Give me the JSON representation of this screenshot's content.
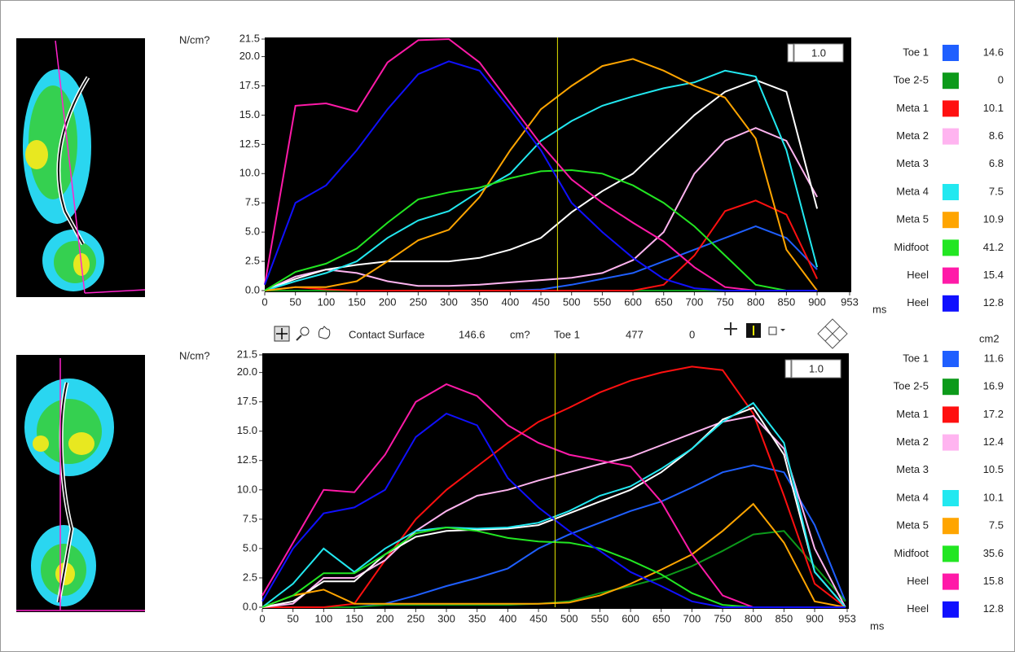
{
  "chart_data": [
    {
      "type": "line",
      "y_label": "N/cm?",
      "x_label": "ms",
      "scale_box": "1.0",
      "xlim": [
        0,
        953
      ],
      "ylim": [
        0,
        21.5
      ],
      "xticks": [
        0,
        50,
        100,
        150,
        200,
        250,
        300,
        350,
        400,
        450,
        500,
        550,
        600,
        650,
        700,
        750,
        800,
        850,
        900,
        953
      ],
      "yticks": [
        {
          "value": 0,
          "label": "0.0"
        },
        2.5,
        {
          "value": 5,
          "label": "5.0"
        },
        7.5,
        {
          "value": 10,
          "label": "10.0"
        },
        12.5,
        {
          "value": 15,
          "label": "15.0"
        },
        17.5,
        {
          "value": 20,
          "label": "20.0"
        },
        21.5
      ],
      "x": [
        0,
        50,
        100,
        150,
        200,
        250,
        300,
        350,
        400,
        450,
        500,
        550,
        600,
        650,
        700,
        750,
        800,
        850,
        900,
        950
      ],
      "series": [
        {
          "name": "Toe 1",
          "color": "#1f5fff",
          "reading": 14.6,
          "values": [
            0,
            0,
            0,
            0,
            0,
            0,
            0,
            0,
            0,
            0.1,
            0.5,
            1,
            1.5,
            2.5,
            3.5,
            4.5,
            5.5,
            4.5,
            1.8,
            null
          ]
        },
        {
          "name": "Toe 2-5",
          "color": "#0c9a1a",
          "reading": 0.0,
          "values": [
            0,
            0,
            0,
            0,
            0,
            0,
            0,
            0,
            0,
            0,
            0,
            0,
            0,
            0,
            0,
            0,
            0,
            0,
            0,
            null
          ]
        },
        {
          "name": "Meta 1",
          "color": "#ff1010",
          "reading": 10.1,
          "values": [
            0,
            0.3,
            0.1,
            0,
            0,
            0,
            0,
            0,
            0,
            0,
            0,
            0,
            0,
            0.5,
            3,
            6.8,
            7.7,
            6.5,
            1,
            null
          ]
        },
        {
          "name": "Meta 2",
          "color": "#ffb4f0",
          "reading": 8.6,
          "values": [
            0,
            1.2,
            1.8,
            1.5,
            0.8,
            0.4,
            0.4,
            0.5,
            0.7,
            0.9,
            1.1,
            1.5,
            2.6,
            5,
            10,
            12.8,
            13.9,
            12.8,
            8,
            null
          ]
        },
        {
          "name": "Meta 3",
          "color": "#ffffff",
          "reading": 6.8,
          "values": [
            0,
            1,
            1.8,
            2.2,
            2.5,
            2.5,
            2.5,
            2.8,
            3.5,
            4.5,
            6.7,
            8.5,
            10,
            12.5,
            15,
            17,
            18,
            17,
            7,
            null
          ]
        },
        {
          "name": "Meta 4",
          "color": "#22e8f0",
          "reading": 7.5,
          "values": [
            0,
            0.8,
            1.5,
            2.5,
            4.5,
            6,
            6.8,
            8.5,
            10,
            12.8,
            14.5,
            15.8,
            16.6,
            17.3,
            17.8,
            18.8,
            18.3,
            12,
            2,
            null
          ]
        },
        {
          "name": "Meta 5",
          "color": "#ffa500",
          "reading": 10.9,
          "values": [
            0,
            0.3,
            0.3,
            0.8,
            2.5,
            4.3,
            5.2,
            8,
            12,
            15.5,
            17.5,
            19.2,
            19.8,
            18.8,
            17.5,
            16.5,
            13,
            3.5,
            0,
            null
          ]
        },
        {
          "name": "Midfoot",
          "color": "#22e622",
          "reading": 41.2,
          "values": [
            0,
            1.6,
            2.3,
            3.6,
            5.8,
            7.8,
            8.4,
            8.8,
            9.6,
            10.2,
            10.3,
            10,
            9,
            7.5,
            5.5,
            3,
            0.5,
            0,
            0,
            null
          ]
        },
        {
          "name": "Heel",
          "color": "#ff1aa8",
          "reading": 15.4,
          "values": [
            0.5,
            15.8,
            16,
            15.3,
            19.5,
            21.4,
            21.5,
            19.5,
            16,
            12.5,
            9.5,
            7.5,
            5.8,
            4.2,
            2,
            0.3,
            0,
            0,
            0,
            null
          ]
        },
        {
          "name": "Heel",
          "color": "#1010ff",
          "reading": 12.8,
          "values": [
            0.5,
            7.5,
            9,
            12,
            15.5,
            18.5,
            19.6,
            18.8,
            15.5,
            12,
            7.5,
            5,
            2.8,
            1,
            0.2,
            0,
            0,
            0,
            0,
            null
          ]
        }
      ]
    },
    {
      "type": "line",
      "y_label": "N/cm?",
      "x_label": "ms",
      "scale_box": "1.0",
      "legend_unit": "cm2",
      "xlim": [
        0,
        953
      ],
      "ylim": [
        0,
        21.5
      ],
      "xticks": [
        0,
        50,
        100,
        150,
        200,
        250,
        300,
        350,
        400,
        450,
        500,
        550,
        600,
        650,
        700,
        750,
        800,
        850,
        900,
        953
      ],
      "yticks": [
        {
          "value": 0,
          "label": "0.0"
        },
        2.5,
        {
          "value": 5,
          "label": "5.0"
        },
        7.5,
        {
          "value": 10,
          "label": "10.0"
        },
        12.5,
        {
          "value": 15,
          "label": "15.0"
        },
        17.5,
        {
          "value": 20,
          "label": "20.0"
        },
        21.5
      ],
      "x": [
        0,
        50,
        100,
        150,
        200,
        250,
        300,
        350,
        400,
        450,
        500,
        550,
        600,
        650,
        700,
        750,
        800,
        850,
        900,
        950
      ],
      "series": [
        {
          "name": "Toe 1",
          "color": "#1f5fff",
          "reading": 11.6,
          "values": [
            0,
            0,
            0,
            0,
            0.3,
            1,
            1.8,
            2.5,
            3.3,
            5,
            6.2,
            7.2,
            8.2,
            9,
            10.2,
            11.5,
            12.1,
            11.5,
            7,
            0.5
          ]
        },
        {
          "name": "Toe 2-5",
          "color": "#0c9a1a",
          "reading": 16.9,
          "values": [
            0,
            0,
            0,
            0,
            0.2,
            0.2,
            0.2,
            0.2,
            0.2,
            0.3,
            0.5,
            1.2,
            1.8,
            2.5,
            3.5,
            4.8,
            6.2,
            6.5,
            3.5,
            0.5
          ]
        },
        {
          "name": "Meta 1",
          "color": "#ff1010",
          "reading": 17.2,
          "values": [
            0,
            0,
            0,
            0.3,
            4,
            7.5,
            10,
            12,
            14,
            15.8,
            17,
            18.3,
            19.3,
            20,
            20.5,
            20.2,
            16.5,
            9.5,
            2,
            0
          ]
        },
        {
          "name": "Meta 2",
          "color": "#ffb4f0",
          "reading": 12.4,
          "values": [
            0,
            0.3,
            2.5,
            2.5,
            4,
            6.5,
            8.2,
            9.5,
            10,
            10.8,
            11.5,
            12.2,
            12.8,
            13.8,
            14.8,
            15.8,
            16.3,
            13.5,
            5,
            0
          ]
        },
        {
          "name": "Meta 3",
          "color": "#ffffff",
          "reading": 10.5,
          "values": [
            0,
            0.5,
            2.2,
            2.2,
            4.5,
            6,
            6.5,
            6.6,
            6.7,
            7,
            8,
            9,
            10,
            11.5,
            13.5,
            16,
            17,
            13,
            3,
            0
          ]
        },
        {
          "name": "Meta 4",
          "color": "#22e8f0",
          "reading": 10.1,
          "values": [
            0,
            2,
            5,
            3,
            5,
            6.5,
            6.8,
            6.7,
            6.8,
            7.2,
            8.2,
            9.5,
            10.3,
            11.8,
            13.5,
            15.8,
            17.4,
            14,
            3,
            0
          ]
        },
        {
          "name": "Meta 5",
          "color": "#ffa500",
          "reading": 7.5,
          "values": [
            0,
            1,
            1.5,
            0.3,
            0.3,
            0.3,
            0.3,
            0.3,
            0.3,
            0.3,
            0.4,
            1,
            2,
            3.2,
            4.5,
            6.5,
            8.8,
            5.5,
            0.5,
            0
          ]
        },
        {
          "name": "Midfoot",
          "color": "#22e622",
          "reading": 35.6,
          "values": [
            0,
            1,
            2.9,
            2.9,
            4.5,
            6.3,
            6.8,
            6.5,
            5.9,
            5.6,
            5.5,
            5,
            4,
            2.8,
            1.2,
            0.2,
            0,
            0,
            0,
            0
          ]
        },
        {
          "name": "Heel",
          "color": "#ff1aa8",
          "reading": 15.8,
          "values": [
            1,
            5.5,
            10,
            9.8,
            13,
            17.5,
            19,
            18,
            15.5,
            14,
            13,
            12.5,
            12,
            9,
            4.5,
            1,
            0,
            0,
            0,
            0
          ]
        },
        {
          "name": "Heel",
          "color": "#1010ff",
          "reading": 12.8,
          "values": [
            0.5,
            5,
            8,
            8.5,
            10,
            14.5,
            16.5,
            15.5,
            11,
            8.5,
            6.5,
            4.8,
            3,
            1.8,
            0.5,
            0,
            0,
            0,
            0,
            0
          ]
        }
      ]
    }
  ],
  "toolbar": {
    "label": "Contact Surface",
    "area": 146.6,
    "unit": "cm?",
    "channel": "Toe 1",
    "time": 477,
    "value": 0
  }
}
